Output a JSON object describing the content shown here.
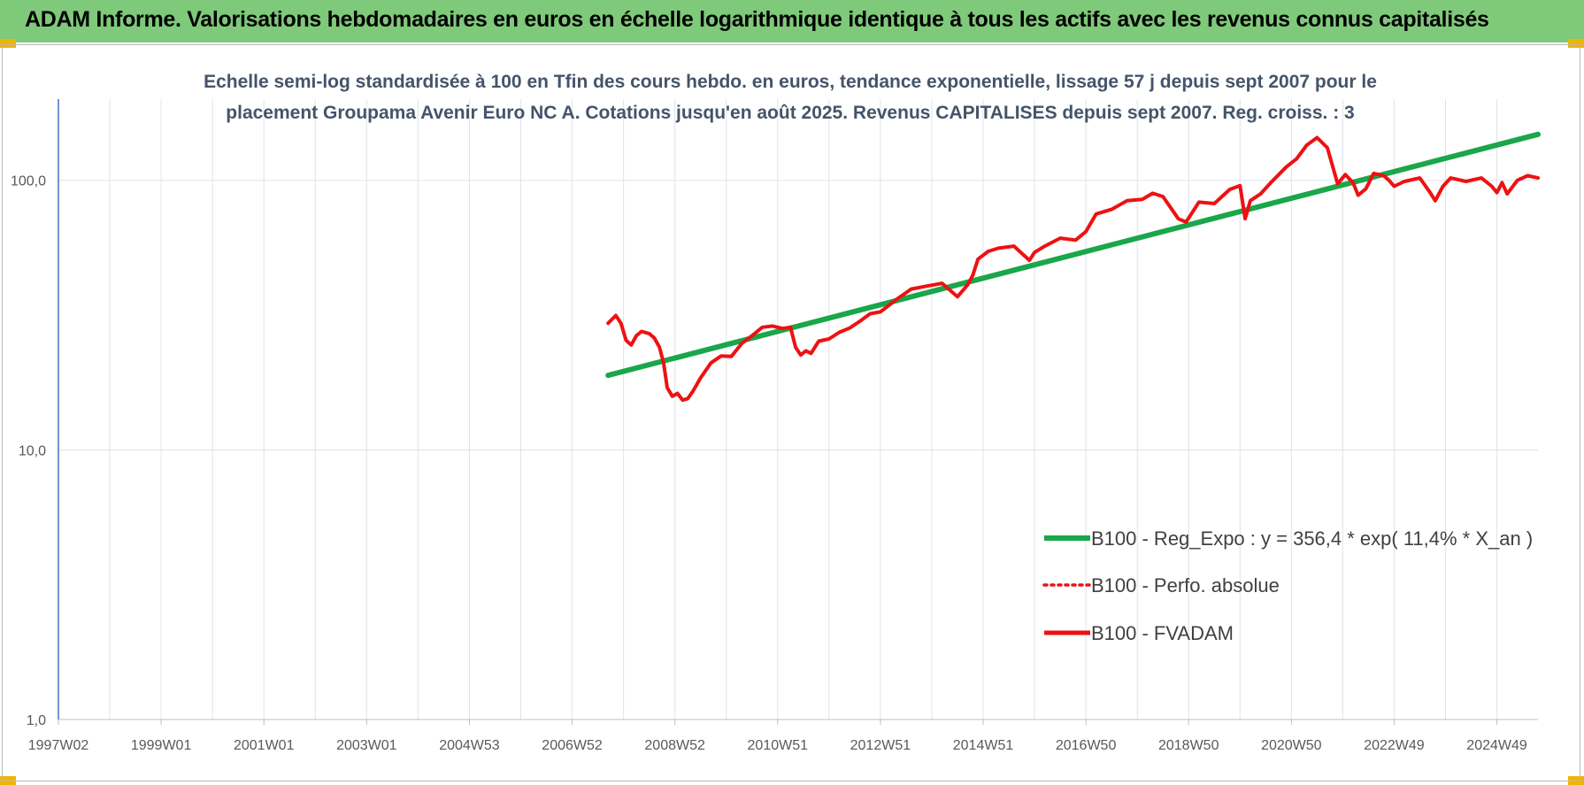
{
  "header": {
    "title": "ADAM Informe. Valorisations hebdomadaires en euros en échelle logarithmique identique à tous les actifs avec les revenus connus capitalisés"
  },
  "colors": {
    "banner": "#7fc97a",
    "corner_accent": "#f0b400",
    "trend": "#1aa64a",
    "fvadam": "#ee1111",
    "perfo": "#ee1111",
    "subtitle": "#44546a"
  },
  "chart_data": {
    "type": "line",
    "subtitle_lines": [
      "Echelle semi-log standardisée à 100 en Tfin des cours hebdo. en euros, tendance exponentielle, lissage 57 j depuis sept 2007  pour le",
      "placement Groupama Avenir Euro NC A. Cotations jusqu'en août 2025. Revenus CAPITALISES depuis sept 2007. Reg. croiss. : 3"
    ],
    "y_scale": "log",
    "ylim": [
      1,
      200
    ],
    "y_ticks": [
      {
        "value": 1,
        "label": "1,0"
      },
      {
        "value": 10,
        "label": "10,0"
      },
      {
        "value": 100,
        "label": "100,0"
      }
    ],
    "xlim": [
      1997.0,
      2025.8
    ],
    "x_ticks": [
      {
        "value": 1997.0,
        "label": "1997W02"
      },
      {
        "value": 1999.0,
        "label": "1999W01"
      },
      {
        "value": 2001.0,
        "label": "2001W01"
      },
      {
        "value": 2003.0,
        "label": "2003W01"
      },
      {
        "value": 2005.0,
        "label": "2004W53"
      },
      {
        "value": 2007.0,
        "label": "2006W52"
      },
      {
        "value": 2009.0,
        "label": "2008W52"
      },
      {
        "value": 2011.0,
        "label": "2010W51"
      },
      {
        "value": 2013.0,
        "label": "2012W51"
      },
      {
        "value": 2015.0,
        "label": "2014W51"
      },
      {
        "value": 2017.0,
        "label": "2016W50"
      },
      {
        "value": 2019.0,
        "label": "2018W50"
      },
      {
        "value": 2021.0,
        "label": "2020W50"
      },
      {
        "value": 2023.0,
        "label": "2022W49"
      },
      {
        "value": 2025.0,
        "label": "2024W49"
      }
    ],
    "grid": true,
    "legend_position": "right",
    "series": [
      {
        "name": "B100 - Reg_Expo : y = 356,4 * exp( 11,4% *  X_an )",
        "style": "solid-thick",
        "color": "#1aa64a",
        "x": [
          2007.7,
          2025.8
        ],
        "y": [
          18.9,
          148
        ]
      },
      {
        "name": "B100 - Perfo. absolue",
        "style": "dotted",
        "color": "#ee1111",
        "x": [],
        "y": []
      },
      {
        "name": "B100 - FVADAM",
        "style": "solid",
        "color": "#ee1111",
        "x": [
          2007.7,
          2007.85,
          2007.95,
          2008.05,
          2008.15,
          2008.25,
          2008.35,
          2008.5,
          2008.6,
          2008.7,
          2008.78,
          2008.85,
          2008.95,
          2009.05,
          2009.15,
          2009.25,
          2009.35,
          2009.5,
          2009.7,
          2009.9,
          2010.1,
          2010.3,
          2010.5,
          2010.7,
          2010.9,
          2011.1,
          2011.25,
          2011.35,
          2011.45,
          2011.55,
          2011.65,
          2011.8,
          2012.0,
          2012.2,
          2012.4,
          2012.6,
          2012.8,
          2013.0,
          2013.3,
          2013.6,
          2013.9,
          2014.2,
          2014.5,
          2014.7,
          2014.8,
          2014.9,
          2015.1,
          2015.3,
          2015.6,
          2015.9,
          2016.0,
          2016.2,
          2016.5,
          2016.8,
          2017.0,
          2017.2,
          2017.5,
          2017.8,
          2018.1,
          2018.3,
          2018.5,
          2018.8,
          2018.95,
          2019.2,
          2019.5,
          2019.8,
          2020.0,
          2020.1,
          2020.2,
          2020.4,
          2020.6,
          2020.9,
          2021.1,
          2021.3,
          2021.5,
          2021.7,
          2021.9,
          2022.05,
          2022.2,
          2022.3,
          2022.45,
          2022.6,
          2022.8,
          2022.9,
          2023.0,
          2023.2,
          2023.5,
          2023.7,
          2023.8,
          2023.95,
          2024.1,
          2024.4,
          2024.7,
          2024.9,
          2025.0,
          2025.1,
          2025.2,
          2025.4,
          2025.6,
          2025.8
        ],
        "y": [
          29.5,
          31.5,
          29.5,
          25.5,
          24.5,
          26.5,
          27.5,
          27,
          26,
          24,
          21,
          17,
          15.8,
          16.2,
          15.3,
          15.5,
          16.5,
          18.5,
          21,
          22.3,
          22.2,
          24.8,
          26.5,
          28.5,
          28.8,
          28.2,
          28.5,
          24,
          22.5,
          23.3,
          22.8,
          25.3,
          25.8,
          27.3,
          28.3,
          30,
          32,
          32.5,
          36,
          39.5,
          40.5,
          41.5,
          37,
          41,
          44.5,
          51,
          54.5,
          56,
          57,
          50.5,
          54,
          57,
          61,
          60,
          64.5,
          75,
          78,
          84,
          85,
          89.5,
          87,
          72,
          70,
          83,
          82,
          92.5,
          95.5,
          72,
          84,
          89,
          98,
          112,
          120,
          135,
          144,
          132,
          97,
          105,
          98,
          88,
          93,
          106,
          104,
          100,
          95,
          99,
          102,
          90,
          84,
          95,
          102,
          99,
          102,
          95,
          90,
          98,
          89,
          100,
          104,
          102
        ]
      }
    ]
  }
}
